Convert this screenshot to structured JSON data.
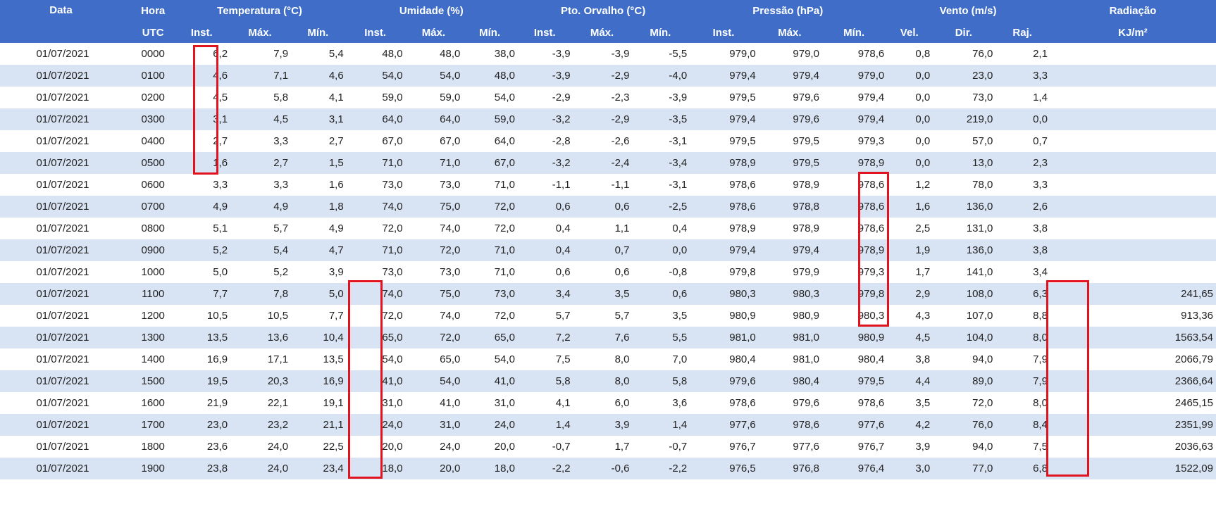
{
  "table": {
    "group_headers": [
      "Data",
      "Hora",
      "Temperatura (°C)",
      "Umidade (%)",
      "Pto. Orvalho (°C)",
      "Pressão (hPa)",
      "Vento (m/s)",
      "Radiação"
    ],
    "sub_headers": [
      "UTC",
      "Inst.",
      "Máx.",
      "Mín.",
      "Inst.",
      "Máx.",
      "Mín.",
      "Inst.",
      "Máx.",
      "Mín.",
      "Inst.",
      "Máx.",
      "Mín.",
      "Vel.",
      "Dir.",
      "Raj.",
      "KJ/m²"
    ],
    "rows": [
      [
        "01/07/2021",
        "0000",
        "6,2",
        "7,9",
        "5,4",
        "48,0",
        "48,0",
        "38,0",
        "-3,9",
        "-3,9",
        "-5,5",
        "979,0",
        "979,0",
        "978,6",
        "0,8",
        "76,0",
        "2,1",
        ""
      ],
      [
        "01/07/2021",
        "0100",
        "4,6",
        "7,1",
        "4,6",
        "54,0",
        "54,0",
        "48,0",
        "-3,9",
        "-2,9",
        "-4,0",
        "979,4",
        "979,4",
        "979,0",
        "0,0",
        "23,0",
        "3,3",
        ""
      ],
      [
        "01/07/2021",
        "0200",
        "4,5",
        "5,8",
        "4,1",
        "59,0",
        "59,0",
        "54,0",
        "-2,9",
        "-2,3",
        "-3,9",
        "979,5",
        "979,6",
        "979,4",
        "0,0",
        "73,0",
        "1,4",
        ""
      ],
      [
        "01/07/2021",
        "0300",
        "3,1",
        "4,5",
        "3,1",
        "64,0",
        "64,0",
        "59,0",
        "-3,2",
        "-2,9",
        "-3,5",
        "979,4",
        "979,6",
        "979,4",
        "0,0",
        "219,0",
        "0,0",
        ""
      ],
      [
        "01/07/2021",
        "0400",
        "2,7",
        "3,3",
        "2,7",
        "67,0",
        "67,0",
        "64,0",
        "-2,8",
        "-2,6",
        "-3,1",
        "979,5",
        "979,5",
        "979,3",
        "0,0",
        "57,0",
        "0,7",
        ""
      ],
      [
        "01/07/2021",
        "0500",
        "1,6",
        "2,7",
        "1,5",
        "71,0",
        "71,0",
        "67,0",
        "-3,2",
        "-2,4",
        "-3,4",
        "978,9",
        "979,5",
        "978,9",
        "0,0",
        "13,0",
        "2,3",
        ""
      ],
      [
        "01/07/2021",
        "0600",
        "3,3",
        "3,3",
        "1,6",
        "73,0",
        "73,0",
        "71,0",
        "-1,1",
        "-1,1",
        "-3,1",
        "978,6",
        "978,9",
        "978,6",
        "1,2",
        "78,0",
        "3,3",
        ""
      ],
      [
        "01/07/2021",
        "0700",
        "4,9",
        "4,9",
        "1,8",
        "74,0",
        "75,0",
        "72,0",
        "0,6",
        "0,6",
        "-2,5",
        "978,6",
        "978,8",
        "978,6",
        "1,6",
        "136,0",
        "2,6",
        ""
      ],
      [
        "01/07/2021",
        "0800",
        "5,1",
        "5,7",
        "4,9",
        "72,0",
        "74,0",
        "72,0",
        "0,4",
        "1,1",
        "0,4",
        "978,9",
        "978,9",
        "978,6",
        "2,5",
        "131,0",
        "3,8",
        ""
      ],
      [
        "01/07/2021",
        "0900",
        "5,2",
        "5,4",
        "4,7",
        "71,0",
        "72,0",
        "71,0",
        "0,4",
        "0,7",
        "0,0",
        "979,4",
        "979,4",
        "978,9",
        "1,9",
        "136,0",
        "3,8",
        ""
      ],
      [
        "01/07/2021",
        "1000",
        "5,0",
        "5,2",
        "3,9",
        "73,0",
        "73,0",
        "71,0",
        "0,6",
        "0,6",
        "-0,8",
        "979,8",
        "979,9",
        "979,3",
        "1,7",
        "141,0",
        "3,4",
        ""
      ],
      [
        "01/07/2021",
        "1100",
        "7,7",
        "7,8",
        "5,0",
        "74,0",
        "75,0",
        "73,0",
        "3,4",
        "3,5",
        "0,6",
        "980,3",
        "980,3",
        "979,8",
        "2,9",
        "108,0",
        "6,3",
        "241,65"
      ],
      [
        "01/07/2021",
        "1200",
        "10,5",
        "10,5",
        "7,7",
        "72,0",
        "74,0",
        "72,0",
        "5,7",
        "5,7",
        "3,5",
        "980,9",
        "980,9",
        "980,3",
        "4,3",
        "107,0",
        "8,8",
        "913,36"
      ],
      [
        "01/07/2021",
        "1300",
        "13,5",
        "13,6",
        "10,4",
        "65,0",
        "72,0",
        "65,0",
        "7,2",
        "7,6",
        "5,5",
        "981,0",
        "981,0",
        "980,9",
        "4,5",
        "104,0",
        "8,0",
        "1563,54"
      ],
      [
        "01/07/2021",
        "1400",
        "16,9",
        "17,1",
        "13,5",
        "54,0",
        "65,0",
        "54,0",
        "7,5",
        "8,0",
        "7,0",
        "980,4",
        "981,0",
        "980,4",
        "3,8",
        "94,0",
        "7,9",
        "2066,79"
      ],
      [
        "01/07/2021",
        "1500",
        "19,5",
        "20,3",
        "16,9",
        "41,0",
        "54,0",
        "41,0",
        "5,8",
        "8,0",
        "5,8",
        "979,6",
        "980,4",
        "979,5",
        "4,4",
        "89,0",
        "7,9",
        "2366,64"
      ],
      [
        "01/07/2021",
        "1600",
        "21,9",
        "22,1",
        "19,1",
        "31,0",
        "41,0",
        "31,0",
        "4,1",
        "6,0",
        "3,6",
        "978,6",
        "979,6",
        "978,6",
        "3,5",
        "72,0",
        "8,0",
        "2465,15"
      ],
      [
        "01/07/2021",
        "1700",
        "23,0",
        "23,2",
        "21,1",
        "24,0",
        "31,0",
        "24,0",
        "1,4",
        "3,9",
        "1,4",
        "977,6",
        "978,6",
        "977,6",
        "4,2",
        "76,0",
        "8,4",
        "2351,99"
      ],
      [
        "01/07/2021",
        "1800",
        "23,6",
        "24,0",
        "22,5",
        "20,0",
        "24,0",
        "20,0",
        "-0,7",
        "1,7",
        "-0,7",
        "976,7",
        "977,6",
        "976,7",
        "3,9",
        "94,0",
        "7,5",
        "2036,63"
      ],
      [
        "01/07/2021",
        "1900",
        "23,8",
        "24,0",
        "23,4",
        "18,0",
        "20,0",
        "18,0",
        "-2,2",
        "-0,6",
        "-2,2",
        "976,5",
        "976,8",
        "976,4",
        "3,0",
        "77,0",
        "6,8",
        "1522,09"
      ]
    ]
  },
  "colors": {
    "header_bg": "#3f6dc7",
    "header_text": "#ffffff",
    "row_alt_bg": "#d8e3f3",
    "highlight_border": "#e0141e"
  }
}
